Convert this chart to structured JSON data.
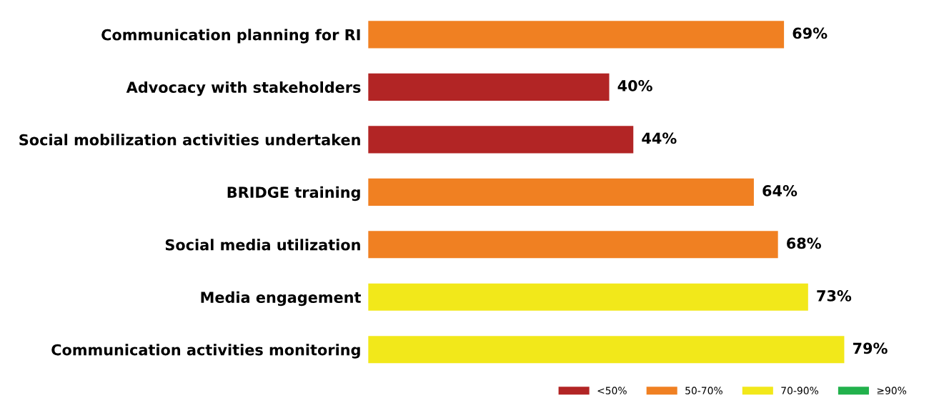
{
  "chart_data": {
    "type": "bar",
    "orientation": "horizontal",
    "legend": "bottom right",
    "categories": [
      "Communication planning for RI",
      "Advocacy with stakeholders",
      "Social mobilization activities undertaken",
      "BRIDGE training",
      "Social media utilization",
      "Media engagement",
      "Communication activities monitoring"
    ],
    "series": [
      {
        "name": "<50%",
        "color": "#b22525",
        "values": [
          null,
          40,
          44,
          null,
          null,
          null,
          null
        ],
        "value_labels": [
          null,
          "40%",
          "44%",
          null,
          null,
          null,
          null
        ]
      },
      {
        "name": "50-70%",
        "color": "#f08022",
        "values": [
          69,
          null,
          null,
          64,
          68,
          null,
          null
        ],
        "value_labels": [
          "69%",
          null,
          null,
          "64%",
          "68%",
          null,
          null
        ]
      },
      {
        "name": "70-90%",
        "color": "#f2e81a",
        "values": [
          null,
          null,
          null,
          null,
          null,
          73,
          79
        ],
        "value_labels": [
          null,
          null,
          null,
          null,
          null,
          "73%",
          "79%"
        ]
      },
      {
        "name": "≥90%",
        "color": "#22b14c",
        "values": [
          null,
          null,
          null,
          null,
          null,
          null,
          null
        ]
      }
    ]
  }
}
